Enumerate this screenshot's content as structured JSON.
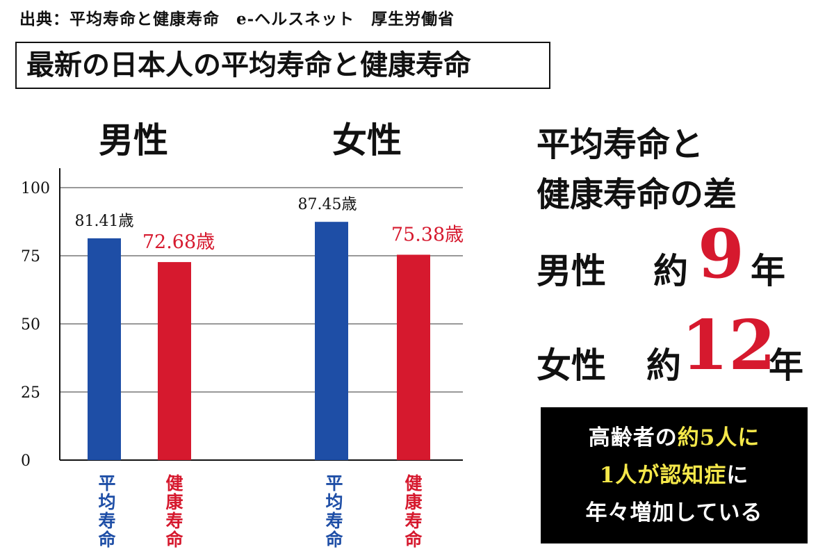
{
  "source": "出典：平均寿命と健康寿命　e-ヘルスネット　厚生労働省",
  "title": "最新の日本人の平均寿命と健康寿命",
  "chart_data": {
    "type": "bar",
    "groups": [
      "男性",
      "女性"
    ],
    "categories": [
      "平均寿命",
      "健康寿命"
    ],
    "series": [
      {
        "name": "平均寿命",
        "color": "#1e4ea6",
        "values": [
          81.41,
          87.45
        ],
        "labels": [
          "81.41歳",
          "87.45歳"
        ]
      },
      {
        "name": "健康寿命",
        "color": "#d6192e",
        "values": [
          72.68,
          75.38
        ],
        "labels": [
          "72.68歳",
          "75.38歳"
        ]
      }
    ],
    "yticks": [
      0,
      25,
      50,
      75,
      100
    ],
    "ylim": [
      0,
      100
    ],
    "grid": true
  },
  "right": {
    "heading_line1": "平均寿命と",
    "heading_line2": "健康寿命の差",
    "male_label": "男性",
    "female_label": "女性",
    "approx": "約",
    "male_diff": "9",
    "female_diff": "12",
    "unit": "年"
  },
  "note": {
    "line1_a": "高齢者の",
    "line1_b": "約5人に",
    "line2_a": "1人が認知症",
    "line2_b": "に",
    "line3": "年々増加している"
  }
}
